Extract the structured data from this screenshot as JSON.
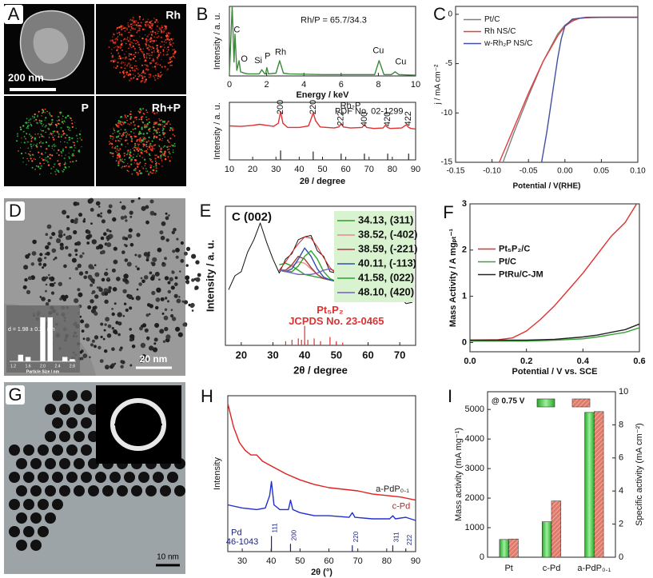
{
  "panel_labels": [
    "A",
    "B",
    "C",
    "D",
    "E",
    "F",
    "G",
    "H",
    "I"
  ],
  "images": {
    "A": {
      "scale_bar": "200 nm",
      "channels": [
        "Rh",
        "P",
        "Rh+P"
      ]
    },
    "D": {
      "size_text": "d = 1.98 ± 0.21 nm",
      "scale_bar": "20 nm"
    },
    "G": {
      "scale_bar": "10 nm"
    }
  },
  "chart_data": [
    {
      "type": "line",
      "xlabel": "Energy / keV",
      "ylabel": "Intensity / a. u.",
      "xlim": [
        0,
        10
      ],
      "xticks": [
        0,
        2,
        4,
        6,
        8,
        10
      ],
      "ylim": [
        0,
        100
      ],
      "series": [
        {
          "color": "#3a8a3a",
          "x": [
            0,
            0.15,
            0.25,
            0.3,
            0.4,
            0.52,
            0.6,
            0.8,
            1.0,
            1.6,
            1.74,
            1.9,
            1.95,
            2.01,
            2.1,
            2.5,
            2.7,
            2.9,
            3.2,
            5,
            7.8,
            8.04,
            8.3,
            8.7,
            8.9,
            9.1,
            10
          ],
          "values": [
            2,
            100,
            20,
            60,
            8,
            22,
            6,
            4,
            3,
            3,
            9,
            3,
            3,
            12,
            3,
            4,
            22,
            4,
            3,
            2,
            2,
            22,
            2,
            2,
            6,
            2,
            1
          ]
        }
      ],
      "annotations": [
        {
          "text": "Rh/P = 65.7/34.3",
          "x": 5.6,
          "y": 80
        },
        {
          "text": "C",
          "x": 0.4,
          "y": 66
        },
        {
          "text": "O",
          "x": 0.8,
          "y": 24
        },
        {
          "text": "Si",
          "x": 1.55,
          "y": 22
        },
        {
          "text": "P",
          "x": 2.05,
          "y": 28
        },
        {
          "text": "Rh",
          "x": 2.75,
          "y": 34
        },
        {
          "text": "Cu",
          "x": 8.0,
          "y": 36
        },
        {
          "text": "Cu",
          "x": 9.2,
          "y": 20
        }
      ]
    },
    {
      "type": "line",
      "xlabel": "2θ / degree",
      "ylabel": "Intensity / a. u.",
      "xlim": [
        10,
        90
      ],
      "xticks": [
        10,
        20,
        30,
        40,
        50,
        60,
        70,
        80,
        90
      ],
      "ylim": [
        0,
        110
      ],
      "series": [
        {
          "color": "#e03030",
          "x": [
            10,
            15,
            20,
            23,
            26,
            29,
            31,
            32,
            33,
            35,
            40,
            44,
            45,
            46,
            47,
            49,
            55,
            57,
            58,
            59,
            62,
            67,
            68,
            69,
            72,
            76,
            77,
            78,
            79,
            84,
            86,
            87,
            88,
            90
          ],
          "values": [
            65,
            64,
            66,
            68,
            66,
            64,
            70,
            92,
            70,
            62,
            62,
            65,
            77,
            90,
            75,
            63,
            61,
            63,
            69,
            63,
            61,
            62,
            67,
            62,
            60,
            61,
            66,
            62,
            60,
            61,
            67,
            62,
            60,
            59
          ]
        }
      ],
      "reference": {
        "color": "#222222",
        "x": [
          32,
          46,
          58,
          68,
          78,
          87
        ],
        "values": [
          18,
          16,
          12,
          12,
          12,
          12
        ]
      },
      "annotations": [
        {
          "text": "200",
          "x": 32,
          "y": 101,
          "vertical": true
        },
        {
          "text": "220",
          "x": 46,
          "y": 101,
          "vertical": true
        },
        {
          "text": "222",
          "x": 58,
          "y": 79,
          "vertical": true
        },
        {
          "text": "400",
          "x": 68,
          "y": 78,
          "vertical": true
        },
        {
          "text": "420",
          "x": 78,
          "y": 78,
          "vertical": true
        },
        {
          "text": "422",
          "x": 87,
          "y": 79,
          "vertical": true
        },
        {
          "text": "Rh₂P",
          "x": 62,
          "y": 103
        },
        {
          "text": "PDF No. 02-1299",
          "x": 70,
          "y": 92
        }
      ]
    },
    {
      "type": "line",
      "xlabel": "Potential / V(RHE)",
      "ylabel": "j / mA cm⁻²",
      "xlim": [
        -0.15,
        0.1
      ],
      "xticks": [
        -0.15,
        {
          "value": -0.1,
          "label": "-0.10"
        },
        -0.05,
        {
          "value": 0,
          "label": "0.00"
        },
        0.05,
        {
          "value": 0.1,
          "label": "0.10"
        }
      ],
      "ylim": [
        -15,
        0.8
      ],
      "yticks": [
        -15,
        -10,
        -5,
        0
      ],
      "legend": "upper left",
      "series": [
        {
          "name": "Pt/C",
          "color": "#808080",
          "x": [
            -0.085,
            -0.07,
            -0.05,
            -0.03,
            -0.01,
            0.0,
            0.01,
            0.02,
            0.03,
            0.06,
            0.1
          ],
          "values": [
            -15,
            -12,
            -8.3,
            -4.8,
            -2,
            -1.1,
            -0.6,
            -0.4,
            -0.35,
            -0.3,
            -0.3
          ]
        },
        {
          "name": "Rh NS/C",
          "color": "#e04040",
          "x": [
            -0.09,
            -0.07,
            -0.05,
            -0.03,
            -0.01,
            0.0,
            0.01,
            0.02,
            0.04,
            0.1
          ],
          "values": [
            -15,
            -11.5,
            -8,
            -4.8,
            -2.2,
            -1.2,
            -0.7,
            -0.4,
            -0.3,
            -0.3
          ]
        },
        {
          "name": "w-Rh₂P NS/C",
          "color": "#4050a0",
          "x": [
            -0.032,
            -0.025,
            -0.02,
            -0.015,
            -0.01,
            -0.005,
            0.0,
            0.01,
            0.03,
            0.1
          ],
          "values": [
            -15,
            -12,
            -9.5,
            -7,
            -4.5,
            -2.5,
            -1.2,
            -0.5,
            -0.3,
            -0.3
          ]
        }
      ]
    },
    {
      "type": "bar",
      "xlabel": "Particle Size / nm",
      "frame": false,
      "color": "#ffffff",
      "categories": [
        "1.2",
        null,
        "1.6",
        null,
        "2.0",
        null,
        "2.4",
        null,
        "2.8"
      ],
      "values": [
        0,
        6,
        4,
        0,
        40,
        40,
        0,
        4,
        2
      ],
      "ylim": [
        0,
        45
      ]
    },
    {
      "type": "line",
      "title": "C (002)",
      "xlabel": "2θ / degree",
      "ylabel": "Intensity / a. u.",
      "xlim": [
        15,
        75
      ],
      "xticks": [
        20,
        30,
        40,
        50,
        60,
        70
      ],
      "ylim": [
        0,
        100
      ],
      "legend": "upper right",
      "legend_facecolor": "#d9f2d0",
      "x": [
        16,
        18,
        20,
        22,
        24,
        26,
        28,
        30,
        32,
        34,
        36,
        38,
        40,
        42,
        44,
        46,
        48,
        50,
        52,
        54,
        56,
        58,
        60,
        62,
        64,
        66,
        68,
        70,
        72,
        74
      ],
      "series": [
        {
          "color": "#111111",
          "values": [
            40,
            50,
            53,
            67,
            76,
            88,
            74,
            62,
            52,
            62,
            66,
            76,
            78,
            79,
            68,
            64,
            53,
            52,
            45,
            46,
            40,
            43,
            37,
            40,
            34,
            37,
            32,
            35,
            30,
            31
          ]
        },
        {
          "name": "34.13, (311)",
          "color": "#2e9e2e",
          "values": [
            null,
            null,
            null,
            null,
            null,
            null,
            null,
            null,
            58,
            59,
            57,
            54,
            51,
            50,
            49,
            48,
            47,
            46,
            45,
            44,
            null,
            null,
            null,
            null,
            null,
            null,
            null,
            null,
            null,
            null
          ]
        },
        {
          "name": "38.52, (-402)",
          "color": "#ee8888",
          "values": [
            null,
            null,
            null,
            null,
            null,
            null,
            null,
            null,
            54,
            54,
            57,
            60,
            59,
            55,
            51,
            48,
            47,
            46,
            45,
            44,
            null,
            null,
            null,
            null,
            null,
            null,
            null,
            null,
            null,
            null
          ]
        },
        {
          "name": "38.59, (-221)",
          "color": "#a04040",
          "values": [
            null,
            null,
            null,
            null,
            null,
            null,
            null,
            null,
            54,
            54,
            58,
            64,
            62,
            56,
            51,
            48,
            47,
            46,
            45,
            44,
            null,
            null,
            null,
            null,
            null,
            null,
            null,
            null,
            null,
            null
          ]
        },
        {
          "name": "40.11, (-113)",
          "color": "#2f4fb0",
          "values": [
            null,
            null,
            null,
            null,
            null,
            null,
            null,
            null,
            54,
            53,
            55,
            62,
            70,
            64,
            55,
            49,
            47,
            46,
            45,
            44,
            null,
            null,
            null,
            null,
            null,
            null,
            null,
            null,
            null,
            null
          ]
        },
        {
          "name": "41.58, (022)",
          "color": "#28a828",
          "values": [
            null,
            null,
            null,
            null,
            null,
            null,
            null,
            null,
            54,
            53,
            53,
            57,
            64,
            68,
            62,
            53,
            48,
            46,
            45,
            44,
            null,
            null,
            null,
            null,
            null,
            null,
            null,
            null,
            null,
            null
          ]
        },
        {
          "name": "48.10, (420)",
          "color": "#7060c0",
          "values": [
            null,
            null,
            null,
            null,
            null,
            null,
            null,
            null,
            54,
            53,
            52,
            51,
            51,
            51,
            52,
            54,
            55,
            53,
            49,
            45,
            null,
            null,
            null,
            null,
            null,
            null,
            null,
            null,
            null,
            null
          ]
        },
        {
          "color": "#e02020",
          "values": [
            null,
            null,
            null,
            null,
            null,
            null,
            null,
            null,
            54,
            60,
            67,
            73,
            78,
            77,
            71,
            63,
            56,
            51,
            47,
            44,
            null,
            null,
            null,
            null,
            null,
            null,
            null,
            null,
            null,
            null
          ]
        }
      ],
      "reference": {
        "color": "#e03030",
        "x": [
          34,
          36,
          38,
          39,
          40,
          41,
          43,
          45,
          48,
          50,
          52
        ],
        "values": [
          3,
          4,
          5,
          4,
          14,
          4,
          5,
          3,
          6,
          3,
          2
        ]
      },
      "annotations": [
        {
          "text": "Pt₅P₂",
          "x": 48,
          "y": 25,
          "color": "#e03030"
        },
        {
          "text": "JCPDS No. 23-0465",
          "x": 50,
          "y": 17,
          "color": "#e03030"
        }
      ]
    },
    {
      "type": "line",
      "xlabel": "Potential / V vs. SCE",
      "ylabel": "Mass Activity / A mgₚₜ⁻¹",
      "xlim": [
        0,
        0.6
      ],
      "xticks": [
        {
          "value": 0,
          "label": "0.0"
        },
        0.2,
        0.4,
        0.6
      ],
      "ylim": [
        -0.2,
        3
      ],
      "yticks": [
        0,
        1,
        2,
        3
      ],
      "legend": "center left",
      "series": [
        {
          "name": "Pt₅P₂/C",
          "color": "#e03030",
          "x": [
            0,
            0.1,
            0.15,
            0.2,
            0.25,
            0.3,
            0.35,
            0.4,
            0.45,
            0.5,
            0.55,
            0.59
          ],
          "values": [
            0.05,
            0.06,
            0.1,
            0.25,
            0.5,
            0.8,
            1.15,
            1.5,
            1.9,
            2.3,
            2.6,
            3.0
          ]
        },
        {
          "name": "Pt/C",
          "color": "#3aa03a",
          "x": [
            0,
            0.2,
            0.3,
            0.4,
            0.45,
            0.5,
            0.55,
            0.6
          ],
          "values": [
            0.03,
            0.03,
            0.05,
            0.08,
            0.12,
            0.17,
            0.22,
            0.32
          ]
        },
        {
          "name": "PtRu/C-JM",
          "color": "#222222",
          "x": [
            0,
            0.2,
            0.3,
            0.4,
            0.45,
            0.5,
            0.55,
            0.6
          ],
          "values": [
            0.05,
            0.05,
            0.07,
            0.12,
            0.16,
            0.22,
            0.28,
            0.4
          ]
        }
      ]
    },
    {
      "type": "line",
      "xlabel": "2θ (°)",
      "ylabel": "Intensity",
      "xlim": [
        25,
        90
      ],
      "xticks": [
        30,
        40,
        50,
        60,
        70,
        80,
        90
      ],
      "ylim": [
        0,
        100
      ],
      "series": [
        {
          "color": "#e02020",
          "x": [
            25,
            27,
            29,
            31,
            33,
            35,
            37,
            40,
            45,
            50,
            55,
            60,
            65,
            70,
            75,
            80,
            85,
            90
          ],
          "values": [
            95,
            80,
            70,
            65,
            62,
            62,
            58,
            55,
            50,
            46,
            43,
            41,
            40,
            39,
            37,
            36,
            35,
            33
          ]
        },
        {
          "color": "#2030d0",
          "x": [
            25,
            30,
            35,
            38,
            39.5,
            40.1,
            41,
            43,
            46,
            46.7,
            47.5,
            50,
            55,
            60,
            67,
            68.1,
            69,
            75,
            81,
            82.1,
            83,
            86.6,
            90
          ],
          "values": [
            30,
            28,
            27,
            28,
            36,
            45,
            30,
            27,
            27,
            33,
            27,
            25,
            23,
            23,
            22,
            25,
            22,
            21,
            21,
            23,
            21,
            22,
            20
          ]
        }
      ],
      "reference": {
        "color": "#1a237e",
        "x": [
          40.1,
          46.7,
          68.1,
          82.1,
          86.6
        ],
        "values": [
          10,
          5,
          4,
          4,
          2
        ],
        "labels": [
          "111",
          "200",
          "220",
          "311",
          "222"
        ]
      },
      "annotations": [
        {
          "text": "a-PdP₀.₁",
          "x": 82,
          "y": 40,
          "color": "#222222"
        },
        {
          "text": "c-Pd",
          "x": 85,
          "y": 29,
          "color": "#c02020"
        },
        {
          "text": "Pd",
          "x": 28,
          "y": 12,
          "color": "#1a237e"
        },
        {
          "text": "46-1043",
          "x": 30,
          "y": 6,
          "color": "#1a237e"
        }
      ]
    },
    {
      "type": "bar",
      "note": "@ 0.75 V",
      "ylabel": "Mass activity (mA mg⁻¹)",
      "y2label": "Specific activity (mA cm⁻²)",
      "categories": [
        "Pt",
        "c-Pd",
        "a-PdP₀.₁"
      ],
      "ylim": [
        0,
        5600
      ],
      "yticks": [
        0,
        1000,
        2000,
        3000,
        4000,
        5000
      ],
      "y2lim": [
        0,
        10
      ],
      "y2ticks": [
        0,
        2,
        4,
        6,
        8,
        10
      ],
      "series": [
        {
          "color": "#4cc84c",
          "values": [
            600,
            1200,
            4900
          ]
        },
        {
          "color": "#e07a6a",
          "axis": "y2",
          "values": [
            1.1,
            3.4,
            8.8
          ]
        }
      ]
    }
  ]
}
